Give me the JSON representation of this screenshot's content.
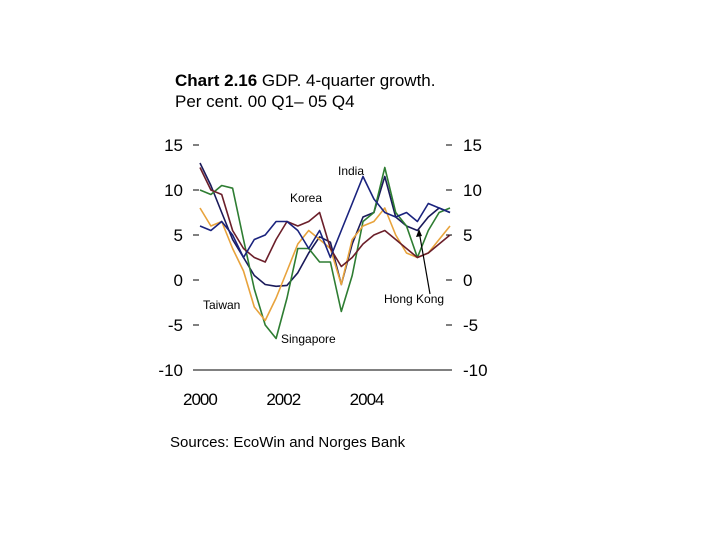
{
  "title": {
    "bold": "Chart 2.16",
    "rest": " GDP. 4-quarter growth.",
    "line2": "Per cent. 00 Q1–  05 Q4"
  },
  "source": "Sources: EcoWin and Norges Bank",
  "chart_data": {
    "type": "line",
    "title": "Chart 2.16 GDP. 4-quarter growth. Per cent. 00 Q1– 05 Q4",
    "xlabel": "",
    "ylabel": "",
    "xlim": [
      2000,
      2006
    ],
    "ylim": [
      -10,
      15
    ],
    "xticks": [
      "2000",
      "2002",
      "2004"
    ],
    "yticks_left": [
      "15",
      "10",
      "5",
      "0",
      "-5",
      "-10"
    ],
    "yticks_right": [
      "15",
      "10",
      "5",
      "0",
      "-5",
      "-10"
    ],
    "x": [
      "00 Q1",
      "00 Q2",
      "00 Q3",
      "00 Q4",
      "01 Q1",
      "01 Q2",
      "01 Q3",
      "01 Q4",
      "02 Q1",
      "02 Q2",
      "02 Q3",
      "02 Q4",
      "03 Q1",
      "03 Q2",
      "03 Q3",
      "03 Q4",
      "04 Q1",
      "04 Q2",
      "04 Q3",
      "04 Q4",
      "05 Q1",
      "05 Q2",
      "05 Q3",
      "05 Q4"
    ],
    "series": [
      {
        "name": "Hong Kong",
        "color": "#1a1a5a",
        "values": [
          13.0,
          10.5,
          7.5,
          4.5,
          2.5,
          0.5,
          -0.5,
          -0.7,
          -0.6,
          0.8,
          3.0,
          4.8,
          4.2,
          -0.5,
          4.0,
          7.0,
          7.5,
          11.5,
          7.0,
          6.0,
          5.5,
          7.0,
          8.0,
          7.5
        ]
      },
      {
        "name": "Singapore",
        "color": "#2e7d32",
        "values": [
          10.0,
          9.5,
          10.5,
          10.2,
          4.5,
          -1.0,
          -5.0,
          -6.5,
          -2.0,
          3.5,
          3.5,
          2.0,
          2.0,
          -3.5,
          0.5,
          6.5,
          7.5,
          12.5,
          7.5,
          6.0,
          2.5,
          5.5,
          7.5,
          8.0
        ]
      },
      {
        "name": "Taiwan",
        "color": "#e8a33c",
        "values": [
          8.0,
          6.0,
          6.5,
          3.5,
          1.0,
          -3.0,
          -4.5,
          -2.0,
          1.0,
          4.0,
          5.5,
          4.5,
          3.5,
          -0.5,
          4.5,
          6.0,
          6.5,
          8.0,
          5.0,
          3.0,
          2.5,
          3.0,
          4.5,
          6.0
        ]
      },
      {
        "name": "Korea",
        "color": "#6b1f2a",
        "values": [
          12.5,
          10.0,
          9.5,
          5.5,
          3.5,
          2.5,
          2.0,
          4.5,
          6.5,
          6.0,
          6.5,
          7.5,
          3.5,
          1.5,
          2.5,
          4.0,
          5.0,
          5.5,
          4.5,
          3.5,
          2.5,
          3.0,
          4.0,
          5.0
        ]
      },
      {
        "name": "India",
        "color": "#1a237e",
        "values": [
          6.0,
          5.5,
          6.5,
          5.0,
          2.5,
          4.5,
          5.0,
          6.5,
          6.5,
          5.5,
          3.5,
          5.5,
          2.5,
          5.5,
          8.5,
          11.5,
          9.0,
          7.5,
          7.0,
          7.5,
          6.5,
          8.5,
          8.0,
          7.5
        ]
      }
    ],
    "annotations": [
      "India",
      "Korea",
      "Taiwan",
      "Singapore",
      "Hong Kong"
    ],
    "grid": false,
    "legend": "none"
  }
}
